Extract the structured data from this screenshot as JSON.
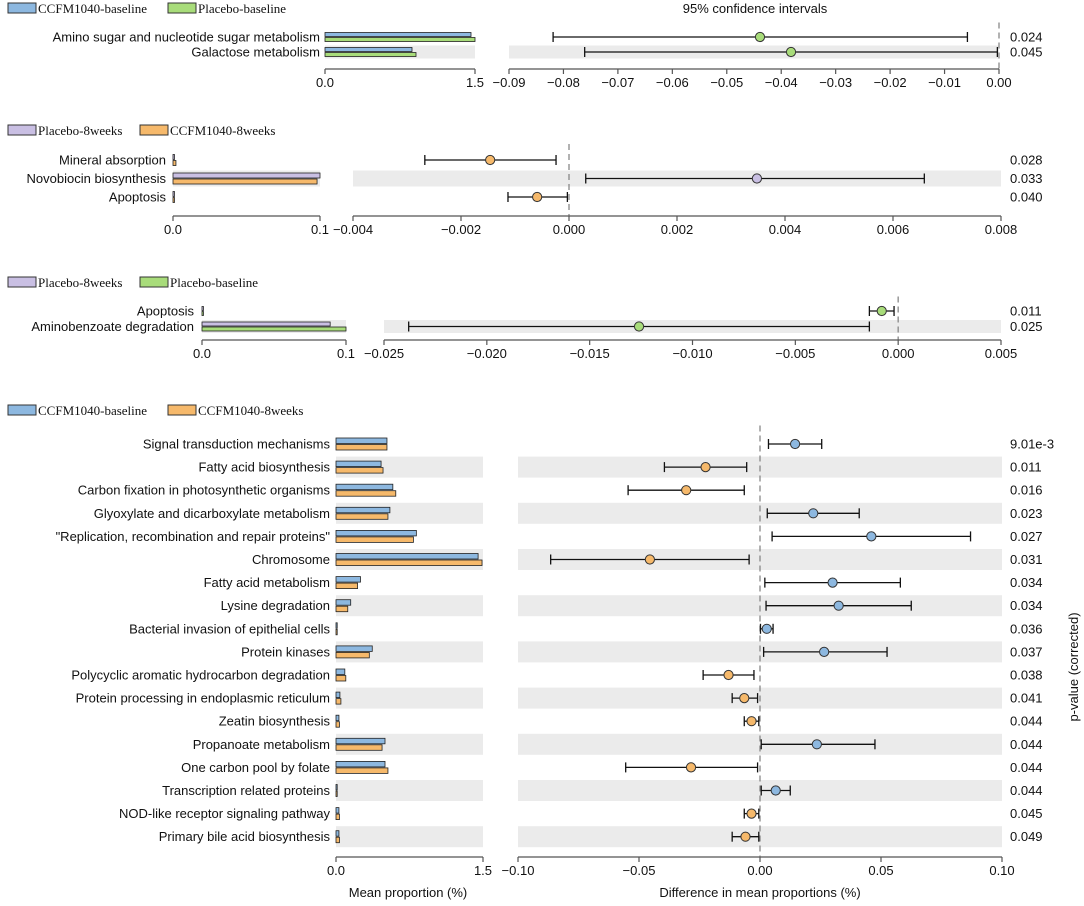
{
  "figure": {
    "top_title": "95% confidence intervals",
    "ylabel_right": "p-value (corrected)",
    "xlabel_left": "Mean proportion (%)",
    "xlabel_right": "Difference in mean proportions (%)"
  },
  "colors": {
    "CCFM1040-baseline": "#8db8e0",
    "Placebo-baseline": "#a8dc7a",
    "Placebo-8weeks": "#c9bfe3",
    "CCFM1040-8weeks": "#f6b96b",
    "band": "#ebebeb",
    "axis": "#555555"
  },
  "chart_data": [
    {
      "type": "bar+errorbar",
      "groups": [
        "CCFM1040-baseline",
        "Placebo-baseline"
      ],
      "legend": [
        "CCFM1040-baseline",
        "Placebo-baseline"
      ],
      "title": "95% confidence intervals",
      "mean_xlim": [
        0,
        1.5
      ],
      "mean_ticks": [
        "0.0",
        "1.5"
      ],
      "diff_xlim": [
        -0.09,
        0.0
      ],
      "diff_ticks": [
        "−0.09",
        "−0.08",
        "−0.07",
        "−0.06",
        "−0.05",
        "−0.04",
        "−0.03",
        "−0.02",
        "−0.01",
        "0.00"
      ],
      "rows": [
        {
          "label": "Amino sugar and nucleotide sugar metabolism",
          "means": [
            1.46,
            1.5
          ],
          "diff": -0.0439,
          "ci": [
            -0.0819,
            -0.0058
          ],
          "dot_group": 1,
          "p": "0.024"
        },
        {
          "label": "Galactose metabolism",
          "means": [
            0.87,
            0.91
          ],
          "diff": -0.0382,
          "ci": [
            -0.0761,
            -0.0003
          ],
          "dot_group": 1,
          "p": "0.045"
        }
      ]
    },
    {
      "type": "bar+errorbar",
      "groups": [
        "Placebo-8weeks",
        "CCFM1040-8weeks"
      ],
      "legend": [
        "Placebo-8weeks",
        "CCFM1040-8weeks"
      ],
      "mean_xlim": [
        0,
        0.1
      ],
      "mean_ticks": [
        "0.0",
        "0.1"
      ],
      "diff_xlim": [
        -0.004,
        0.008
      ],
      "diff_ticks": [
        "−0.004",
        "−0.002",
        "0.000",
        "0.002",
        "0.004",
        "0.006",
        "0.008"
      ],
      "rows": [
        {
          "label": "Mineral absorption",
          "means": [
            0.001,
            0.002
          ],
          "diff": -0.00146,
          "ci": [
            -0.00267,
            -0.00024
          ],
          "dot_group": 1,
          "p": "0.028"
        },
        {
          "label": "Novobiocin biosynthesis",
          "means": [
            0.1,
            0.098
          ],
          "diff": 0.00348,
          "ci": [
            0.00031,
            0.00658
          ],
          "dot_group": 0,
          "p": "0.033"
        },
        {
          "label": "Apoptosis",
          "means": [
            0.001,
            0.001
          ],
          "diff": -0.00059,
          "ci": [
            -0.00113,
            -3e-05
          ],
          "dot_group": 1,
          "p": "0.040"
        }
      ]
    },
    {
      "type": "bar+errorbar",
      "groups": [
        "Placebo-8weeks",
        "Placebo-baseline"
      ],
      "legend": [
        "Placebo-8weeks",
        "Placebo-baseline"
      ],
      "mean_xlim": [
        0,
        0.1
      ],
      "mean_ticks": [
        "0.0",
        "0.1"
      ],
      "diff_xlim": [
        -0.025,
        0.005
      ],
      "diff_ticks": [
        "−0.025",
        "−0.020",
        "−0.015",
        "−0.010",
        "−0.005",
        "0.000",
        "0.005"
      ],
      "rows": [
        {
          "label": "Apoptosis",
          "means": [
            0.001,
            0.001
          ],
          "diff": -0.0008,
          "ci": [
            -0.0014,
            -0.0002
          ],
          "dot_group": 1,
          "p": "0.011"
        },
        {
          "label": "Aminobenzoate degradation",
          "means": [
            0.089,
            0.1
          ],
          "diff": -0.0126,
          "ci": [
            -0.0238,
            -0.0014
          ],
          "dot_group": 1,
          "p": "0.025"
        }
      ]
    },
    {
      "type": "bar+errorbar",
      "groups": [
        "CCFM1040-baseline",
        "CCFM1040-8weeks"
      ],
      "legend": [
        "CCFM1040-baseline",
        "CCFM1040-8weeks"
      ],
      "mean_xlim": [
        0,
        1.5
      ],
      "mean_ticks": [
        "0.0",
        "1.5"
      ],
      "diff_xlim": [
        -0.1,
        0.1
      ],
      "diff_ticks": [
        "−0.10",
        "−0.05",
        "0.00",
        "0.05",
        "0.10"
      ],
      "xlabel_left": "Mean proportion (%)",
      "xlabel_right": "Difference in mean proportions (%)",
      "ylabel_right": "p-value (corrected)",
      "rows": [
        {
          "label": "Signal transduction mechanisms",
          "means": [
            0.52,
            0.52
          ],
          "diff": 0.0145,
          "ci": [
            0.0035,
            0.0255
          ],
          "dot_group": 0,
          "p": "9.01e-3"
        },
        {
          "label": "Fatty acid biosynthesis",
          "means": [
            0.46,
            0.48
          ],
          "diff": -0.0225,
          "ci": [
            -0.0395,
            -0.0055
          ],
          "dot_group": 1,
          "p": "0.011"
        },
        {
          "label": "Carbon fixation in photosynthetic organisms",
          "means": [
            0.58,
            0.61
          ],
          "diff": -0.0305,
          "ci": [
            -0.0545,
            -0.0065
          ],
          "dot_group": 1,
          "p": "0.016"
        },
        {
          "label": "Glyoxylate and dicarboxylate metabolism",
          "means": [
            0.55,
            0.53
          ],
          "diff": 0.022,
          "ci": [
            0.003,
            0.041
          ],
          "dot_group": 0,
          "p": "0.023"
        },
        {
          "label": "\"Replication, recombination and repair proteins\"",
          "means": [
            0.82,
            0.79
          ],
          "diff": 0.046,
          "ci": [
            0.005,
            0.087
          ],
          "dot_group": 0,
          "p": "0.027"
        },
        {
          "label": "Chromosome",
          "means": [
            1.45,
            1.49
          ],
          "diff": -0.0455,
          "ci": [
            -0.0865,
            -0.0045
          ],
          "dot_group": 1,
          "p": "0.031"
        },
        {
          "label": "Fatty acid metabolism",
          "means": [
            0.25,
            0.22
          ],
          "diff": 0.03,
          "ci": [
            0.002,
            0.058
          ],
          "dot_group": 0,
          "p": "0.034"
        },
        {
          "label": "Lysine degradation",
          "means": [
            0.15,
            0.12
          ],
          "diff": 0.0325,
          "ci": [
            0.0025,
            0.0625
          ],
          "dot_group": 0,
          "p": "0.034"
        },
        {
          "label": "Bacterial invasion of epithelial cells",
          "means": [
            0.01,
            0.005
          ],
          "diff": 0.0028,
          "ci": [
            0.0002,
            0.0054
          ],
          "dot_group": 0,
          "p": "0.036"
        },
        {
          "label": "Protein kinases",
          "means": [
            0.37,
            0.34
          ],
          "diff": 0.0265,
          "ci": [
            0.0015,
            0.0525
          ],
          "dot_group": 0,
          "p": "0.037"
        },
        {
          "label": "Polycyclic aromatic hydrocarbon degradation",
          "means": [
            0.09,
            0.1
          ],
          "diff": -0.013,
          "ci": [
            -0.0235,
            -0.0025
          ],
          "dot_group": 1,
          "p": "0.038"
        },
        {
          "label": "Protein processing in endoplasmic reticulum",
          "means": [
            0.04,
            0.05
          ],
          "diff": -0.0065,
          "ci": [
            -0.0115,
            -0.001
          ],
          "dot_group": 1,
          "p": "0.041"
        },
        {
          "label": "Zeatin biosynthesis",
          "means": [
            0.03,
            0.035
          ],
          "diff": -0.0035,
          "ci": [
            -0.0065,
            -0.0005
          ],
          "dot_group": 1,
          "p": "0.044"
        },
        {
          "label": "Propanoate metabolism",
          "means": [
            0.5,
            0.47
          ],
          "diff": 0.0235,
          "ci": [
            0.0005,
            0.0475
          ],
          "dot_group": 0,
          "p": "0.044"
        },
        {
          "label": "One carbon pool by folate",
          "means": [
            0.5,
            0.53
          ],
          "diff": -0.0285,
          "ci": [
            -0.0555,
            -0.001
          ],
          "dot_group": 1,
          "p": "0.044"
        },
        {
          "label": "Transcription related proteins",
          "means": [
            0.008,
            0.004
          ],
          "diff": 0.0065,
          "ci": [
            0.0005,
            0.0125
          ],
          "dot_group": 0,
          "p": "0.044"
        },
        {
          "label": "NOD-like receptor signaling pathway",
          "means": [
            0.03,
            0.035
          ],
          "diff": -0.0035,
          "ci": [
            -0.0065,
            -0.0005
          ],
          "dot_group": 1,
          "p": "0.045"
        },
        {
          "label": "Primary bile acid biosynthesis",
          "means": [
            0.03,
            0.035
          ],
          "diff": -0.006,
          "ci": [
            -0.0115,
            -0.0005
          ],
          "dot_group": 1,
          "p": "0.049"
        }
      ]
    }
  ]
}
